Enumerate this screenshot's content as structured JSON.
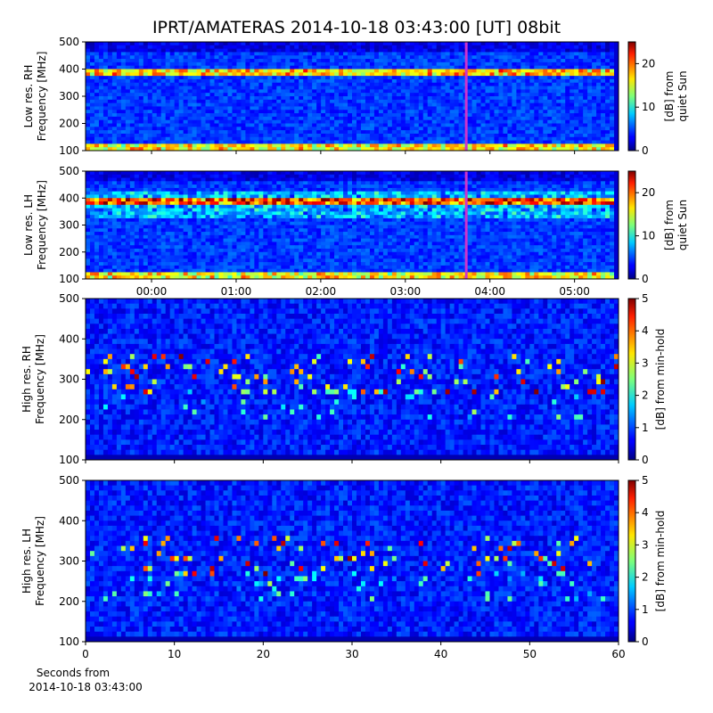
{
  "title": "IPRT/AMATERAS 2014-10-18 03:43:00 [UT]   08bit",
  "chart_data": [
    {
      "type": "heatmap",
      "ylabel": [
        "Low res. RH",
        "Frequency [MHz]"
      ],
      "xlim": [
        -0.78,
        5.52
      ],
      "xticks": [
        {
          "value": 0,
          "label": "00:00"
        },
        {
          "value": 1,
          "label": "01:00"
        },
        {
          "value": 2,
          "label": "02:00"
        },
        {
          "value": 3,
          "label": "03:00"
        },
        {
          "value": 4,
          "label": "04:00"
        },
        {
          "value": 5,
          "label": "05:00"
        }
      ],
      "show_xticklabels": false,
      "ylim": [
        100,
        500
      ],
      "yticks": [
        100,
        200,
        300,
        400,
        500
      ],
      "zlim": [
        0,
        25
      ],
      "zticks": [
        0,
        10,
        20
      ],
      "colorbar_label": [
        "[dB] from",
        "quiet Sun"
      ],
      "marker": 3.72,
      "marker_color": "#cc33cc"
    },
    {
      "type": "heatmap",
      "ylabel": [
        "Low res. LH",
        "Frequency [MHz]"
      ],
      "xlim": [
        -0.78,
        5.52
      ],
      "xticks": [
        {
          "value": 0,
          "label": "00:00"
        },
        {
          "value": 1,
          "label": "01:00"
        },
        {
          "value": 2,
          "label": "02:00"
        },
        {
          "value": 3,
          "label": "03:00"
        },
        {
          "value": 4,
          "label": "04:00"
        },
        {
          "value": 5,
          "label": "05:00"
        }
      ],
      "show_xticklabels": true,
      "ylim": [
        100,
        500
      ],
      "yticks": [
        100,
        200,
        300,
        400,
        500
      ],
      "zlim": [
        0,
        25
      ],
      "zticks": [
        0,
        10,
        20
      ],
      "colorbar_label": [
        "[dB] from",
        "quiet Sun"
      ],
      "marker": 3.72,
      "marker_color": "#cc33cc"
    },
    {
      "type": "heatmap",
      "ylabel": [
        "High res. RH",
        "Frequency [MHz]"
      ],
      "xlim": [
        0,
        60
      ],
      "xticks": [
        0,
        10,
        20,
        30,
        40,
        50,
        60
      ],
      "show_xticklabels": false,
      "ylim": [
        100,
        500
      ],
      "yticks": [
        100,
        200,
        300,
        400,
        500
      ],
      "zlim": [
        0,
        5
      ],
      "zticks": [
        0,
        1,
        2,
        3,
        4,
        5
      ],
      "colorbar_label": [
        "[dB] from min-hold"
      ]
    },
    {
      "type": "heatmap",
      "ylabel": [
        "High res. LH",
        "Frequency [MHz]"
      ],
      "xlim": [
        0,
        60
      ],
      "xticks": [
        0,
        10,
        20,
        30,
        40,
        50,
        60
      ],
      "show_xticklabels": true,
      "ylim": [
        100,
        500
      ],
      "yticks": [
        100,
        200,
        300,
        400,
        500
      ],
      "zlim": [
        0,
        5
      ],
      "zticks": [
        0,
        1,
        2,
        3,
        4,
        5
      ],
      "colorbar_label": [
        "[dB] from min-hold"
      ],
      "xlabel": [
        "Seconds from",
        "2014-10-18 03:43:00"
      ]
    }
  ]
}
